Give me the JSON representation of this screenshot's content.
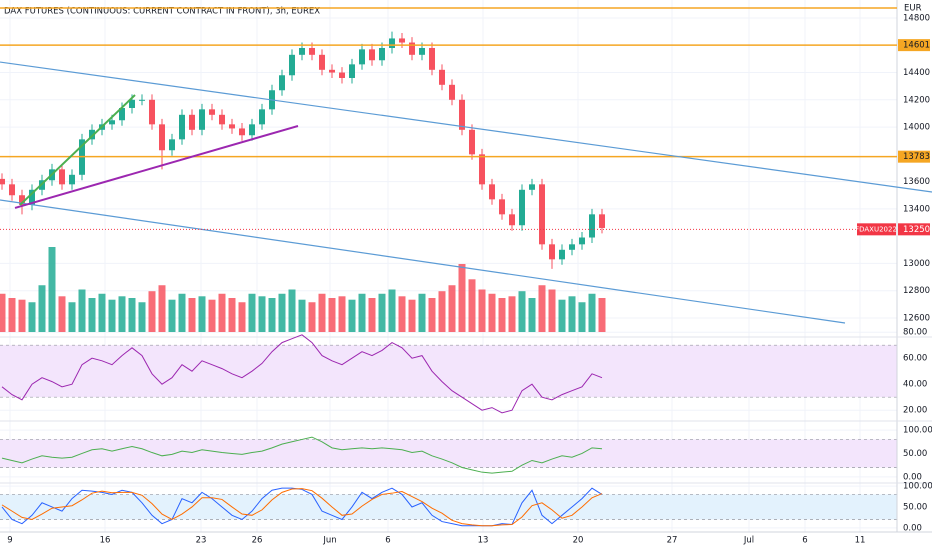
{
  "chart_data": {
    "type": "candlestick",
    "title": "DAX FUTURES (CONTINUOUS: CURRENT CONTRACT IN FRONT), 3h, EUREX",
    "currency": "EUR",
    "up_color": "#22ab94",
    "down_color": "#f7525f",
    "open": [
      13620,
      13580,
      13500,
      13430,
      13540,
      13610,
      13690,
      13580,
      13650,
      13910,
      13980,
      14020,
      14050,
      14140,
      14200,
      14200,
      14020,
      13830,
      13910,
      14090,
      13980,
      14130,
      14090,
      14020,
      13990,
      13940,
      14020,
      14130,
      14270,
      14380,
      14530,
      14580,
      14530,
      14420,
      14400,
      14360,
      14460,
      14570,
      14490,
      14580,
      14650,
      14620,
      14530,
      14580,
      14420,
      14310,
      14200,
      13980,
      13800,
      13580,
      13470,
      13360,
      13280,
      13540,
      13580,
      13140,
      13030,
      13100,
      13140,
      13190,
      13360
    ],
    "high": [
      13660,
      13620,
      13540,
      13580,
      13650,
      13730,
      13730,
      13690,
      13950,
      14020,
      14060,
      14090,
      14180,
      14240,
      14240,
      14240,
      14060,
      13950,
      14130,
      14130,
      14170,
      14170,
      14130,
      14060,
      14030,
      14060,
      14170,
      14310,
      14420,
      14570,
      14620,
      14620,
      14570,
      14460,
      14440,
      14500,
      14610,
      14610,
      14620,
      14700,
      14690,
      14660,
      14620,
      14620,
      14460,
      14350,
      14240,
      14020,
      13840,
      13620,
      13510,
      13400,
      13580,
      13620,
      13620,
      13180,
      13140,
      13180,
      13230,
      13400,
      13400
    ],
    "low": [
      13540,
      13460,
      13360,
      13390,
      13500,
      13570,
      13540,
      13540,
      13610,
      13870,
      13940,
      13980,
      14010,
      14100,
      14160,
      13980,
      13690,
      13790,
      13870,
      13940,
      13940,
      14050,
      13980,
      13950,
      13900,
      13900,
      13980,
      14090,
      14230,
      14340,
      14490,
      14490,
      14380,
      14360,
      14320,
      14320,
      14420,
      14450,
      14450,
      14540,
      14580,
      14490,
      14490,
      14380,
      14270,
      14160,
      13940,
      13760,
      13540,
      13430,
      13320,
      13240,
      13240,
      13500,
      13100,
      12960,
      12990,
      13060,
      13100,
      13150,
      13220
    ],
    "close": [
      13580,
      13500,
      13430,
      13540,
      13610,
      13690,
      13580,
      13650,
      13910,
      13980,
      14020,
      14050,
      14140,
      14200,
      14200,
      14020,
      13830,
      13910,
      14090,
      13980,
      14130,
      14090,
      14020,
      13990,
      13940,
      14020,
      14130,
      14270,
      14380,
      14530,
      14580,
      14530,
      14420,
      14400,
      14360,
      14460,
      14570,
      14490,
      14580,
      14650,
      14620,
      14530,
      14580,
      14420,
      14310,
      14200,
      13980,
      13800,
      13580,
      13470,
      13360,
      13280,
      13540,
      13580,
      13140,
      13030,
      13100,
      13140,
      13190,
      13360,
      13260
    ],
    "volume": [
      45,
      40,
      38,
      35,
      55,
      100,
      42,
      35,
      50,
      40,
      45,
      38,
      42,
      40,
      35,
      48,
      55,
      38,
      45,
      40,
      42,
      38,
      45,
      40,
      35,
      45,
      42,
      40,
      45,
      50,
      38,
      35,
      45,
      40,
      42,
      38,
      45,
      40,
      45,
      50,
      42,
      38,
      45,
      40,
      48,
      55,
      80,
      62,
      50,
      45,
      40,
      42,
      48,
      40,
      55,
      50,
      38,
      42,
      35,
      45,
      40
    ],
    "ylim": [
      12475,
      14932
    ],
    "yticks": [
      14800,
      14400,
      14200,
      14000,
      13600,
      13400,
      13000,
      12800,
      12600
    ],
    "x_labels": [
      "9",
      "16",
      "23",
      "26",
      "Jun",
      "6",
      "13",
      "20",
      "27",
      "Jul",
      "6",
      "11"
    ],
    "level_color": "#f5a623",
    "levels": [
      {
        "value": 14873,
        "tag": false
      },
      {
        "value": 14601,
        "tag": true
      },
      {
        "value": 13783,
        "tag": true
      }
    ],
    "last": {
      "symbol": "FDAXU2022",
      "value": 13250,
      "color": "#f23645"
    },
    "trendlines": [
      {
        "color": "#5b9bd5",
        "from": 14477,
        "to": 13524
      },
      {
        "color": "#5b9bd5",
        "from": 13465,
        "to": 12563
      },
      {
        "color": "#9c27b0",
        "from": 13407,
        "to": 14008
      },
      {
        "color": "#4caf50",
        "from": 13429,
        "to": 14235
      }
    ],
    "indicators": [
      {
        "ylim": [
          14,
          74
        ],
        "band": [
          30,
          70
        ],
        "band_color": "#f3e5fc",
        "yticks": [
          {
            "value": 80,
            "label": "80.00"
          },
          {
            "value": 60,
            "label": "60.00"
          },
          {
            "value": 40,
            "label": "40.00"
          },
          {
            "value": 20,
            "label": "20.00"
          }
        ],
        "series": [
          {
            "color": "#9c27b0",
            "values": [
              38,
              32,
              28,
              40,
              45,
              42,
              38,
              40,
              55,
              60,
              58,
              55,
              62,
              68,
              62,
              48,
              40,
              45,
              55,
              50,
              58,
              55,
              52,
              48,
              45,
              50,
              56,
              65,
              72,
              75,
              78,
              72,
              62,
              58,
              55,
              60,
              65,
              62,
              66,
              72,
              68,
              60,
              62,
              50,
              42,
              35,
              30,
              25,
              20,
              22,
              18,
              20,
              35,
              40,
              30,
              28,
              32,
              35,
              38,
              48,
              45
            ]
          }
        ]
      },
      {
        "ylim": [
          -11,
          113
        ],
        "band": [
          20,
          80
        ],
        "band_color": "#f3e5fc",
        "yticks": [
          {
            "value": 100,
            "label": "100.00"
          },
          {
            "value": 50,
            "label": "50.00"
          },
          {
            "value": 0,
            "label": "0.00"
          }
        ],
        "series": [
          {
            "color": "#4caf50",
            "values": [
              40,
              35,
              30,
              38,
              45,
              42,
              40,
              42,
              50,
              58,
              60,
              55,
              60,
              65,
              60,
              52,
              45,
              48,
              55,
              52,
              58,
              55,
              52,
              50,
              48,
              52,
              55,
              62,
              70,
              75,
              80,
              85,
              75,
              62,
              58,
              60,
              62,
              60,
              62,
              60,
              58,
              52,
              55,
              45,
              38,
              30,
              20,
              15,
              10,
              8,
              10,
              12,
              25,
              35,
              30,
              38,
              45,
              42,
              50,
              62,
              60
            ]
          }
        ]
      },
      {
        "ylim": [
          -10,
          105
        ],
        "band": [
          20,
          80
        ],
        "band_color": "#e3f2fd",
        "yticks": [
          {
            "value": 100,
            "label": "100.00"
          },
          {
            "value": 50,
            "label": "50.00"
          },
          {
            "value": 0,
            "label": "0.00"
          }
        ],
        "series": [
          {
            "color": "#2962ff",
            "values": [
              50,
              20,
              10,
              30,
              60,
              50,
              40,
              70,
              90,
              88,
              85,
              80,
              90,
              85,
              60,
              30,
              10,
              20,
              70,
              60,
              85,
              70,
              50,
              30,
              20,
              40,
              70,
              90,
              95,
              95,
              92,
              80,
              40,
              30,
              20,
              50,
              85,
              70,
              85,
              95,
              80,
              50,
              60,
              30,
              15,
              10,
              5,
              5,
              5,
              5,
              10,
              8,
              60,
              90,
              30,
              10,
              30,
              50,
              70,
              95,
              80
            ]
          },
          {
            "color": "#ff6d00",
            "values": [
              55,
              40,
              25,
              20,
              33,
              47,
              50,
              53,
              67,
              83,
              88,
              84,
              85,
              85,
              78,
              58,
              33,
              20,
              33,
              50,
              72,
              72,
              68,
              50,
              33,
              30,
              43,
              67,
              85,
              93,
              94,
              89,
              71,
              50,
              30,
              33,
              52,
              68,
              80,
              83,
              87,
              75,
              63,
              47,
              35,
              18,
              10,
              7,
              5,
              5,
              7,
              8,
              26,
              53,
              60,
              43,
              23,
              30,
              50,
              72,
              82
            ]
          }
        ]
      }
    ]
  }
}
